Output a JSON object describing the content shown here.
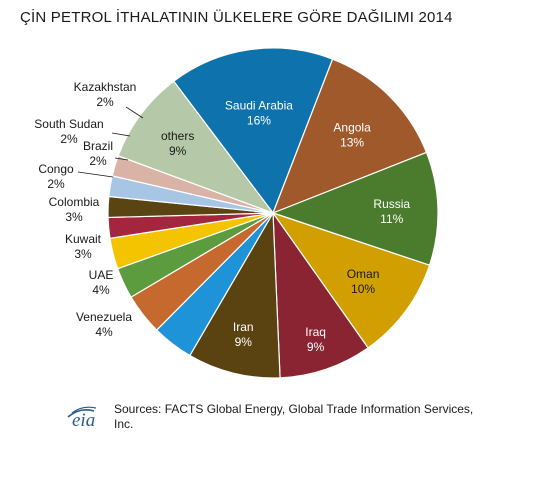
{
  "chart_data": {
    "type": "pie",
    "title": "ÇİN PETROL İTHALATININ ÜLKELERE GÖRE DAĞILIMI 2014",
    "slices": [
      {
        "label": "Saudi Arabia",
        "percent_label": "16%",
        "value": 16,
        "color": "#0e73ad"
      },
      {
        "label": "Angola",
        "percent_label": "13%",
        "value": 13,
        "color": "#a0592a"
      },
      {
        "label": "Russia",
        "percent_label": "11%",
        "value": 11,
        "color": "#4b7c2e"
      },
      {
        "label": "Oman",
        "percent_label": "10%",
        "value": 10,
        "color": "#d1a000"
      },
      {
        "label": "Iraq",
        "percent_label": "9%",
        "value": 9,
        "color": "#8b2432"
      },
      {
        "label": "Iran",
        "percent_label": "9%",
        "value": 9,
        "color": "#5a4310"
      },
      {
        "label": "Venezuela",
        "percent_label": "4%",
        "value": 4,
        "color": "#1e93d8"
      },
      {
        "label": "UAE",
        "percent_label": "4%",
        "value": 4,
        "color": "#c5692f"
      },
      {
        "label": "Kuwait",
        "percent_label": "3%",
        "value": 3,
        "color": "#5d9c3e"
      },
      {
        "label": "Colombia",
        "percent_label": "3%",
        "value": 3,
        "color": "#f5c400"
      },
      {
        "label": "Congo",
        "percent_label": "2%",
        "value": 2,
        "color": "#a3253e"
      },
      {
        "label": "Brazil",
        "percent_label": "2%",
        "value": 2,
        "color": "#5a4512"
      },
      {
        "label": "South Sudan",
        "percent_label": "2%",
        "value": 2,
        "color": "#a7c6e6"
      },
      {
        "label": "Kazakhstan",
        "percent_label": "2%",
        "value": 2,
        "color": "#d9b3a5"
      },
      {
        "label": "others",
        "percent_label": "9%",
        "value": 9,
        "color": "#b5c9a8"
      }
    ]
  },
  "source": {
    "logo_text": "eia",
    "text": "Sources: FACTS Global Energy, Global Trade Information Services, Inc."
  }
}
